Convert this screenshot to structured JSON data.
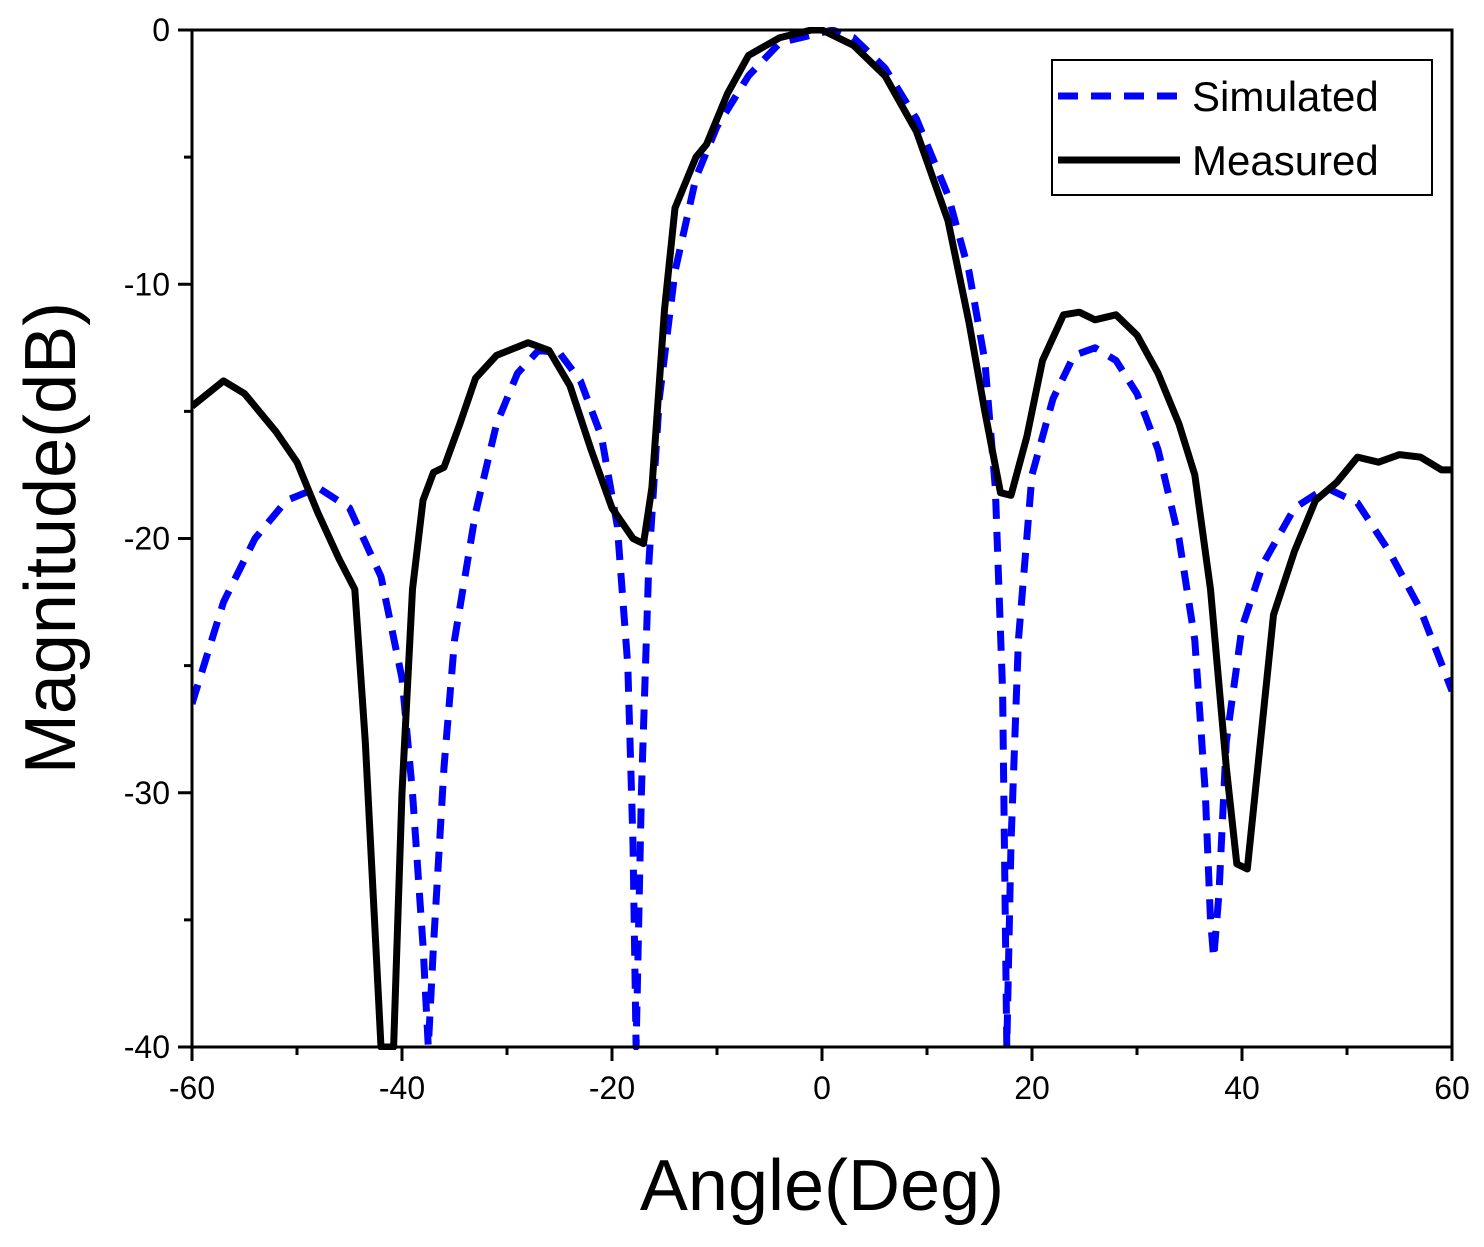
{
  "chart_data": {
    "type": "line",
    "xlabel": "Angle(Deg)",
    "ylabel": "Magnitude(dB)",
    "xlim": [
      -60,
      60
    ],
    "xticks": [
      -60,
      -40,
      -20,
      0,
      20,
      40,
      60
    ],
    "xminorticks": [
      -50,
      -30,
      -10,
      10,
      30,
      50
    ],
    "ylim": [
      -40,
      0
    ],
    "yticks": [
      0,
      -10,
      -20,
      -30,
      -40
    ],
    "yminorticks": [
      -5,
      -15,
      -25,
      -35
    ],
    "grid": false,
    "legend": "upper right",
    "series": [
      {
        "name": "Simulated",
        "color": "#0000ff",
        "linestyle": "dashed",
        "x": [
          -60,
          -57,
          -54,
          -51,
          -48,
          -45,
          -42,
          -40,
          -39,
          -38,
          -37.5,
          -37,
          -36,
          -35,
          -33,
          -31,
          -29,
          -27,
          -25,
          -23,
          -21,
          -19.5,
          -18.5,
          -18,
          -17.7,
          -17.2,
          -16.5,
          -15.5,
          -14,
          -12,
          -10,
          -7,
          -4,
          0,
          1,
          3,
          6,
          9,
          12,
          14,
          15.5,
          16.5,
          17.2,
          17.6,
          18,
          18.7,
          20,
          22,
          24,
          26,
          28,
          30,
          32,
          34,
          35.5,
          36.5,
          37,
          37.3,
          37.8,
          38.5,
          40,
          42,
          45,
          48,
          51,
          54,
          57,
          60
        ],
        "values": [
          -26.5,
          -22.5,
          -20,
          -18.5,
          -18,
          -18.8,
          -21.5,
          -25.5,
          -30,
          -36,
          -40,
          -36,
          -29,
          -24,
          -19,
          -15.5,
          -13.5,
          -12.6,
          -12.7,
          -13.8,
          -16,
          -19.5,
          -25,
          -32,
          -40,
          -30,
          -21,
          -14.5,
          -9.5,
          -5.8,
          -3.8,
          -1.8,
          -0.5,
          -0.1,
          0,
          -0.3,
          -1.5,
          -3.5,
          -6.5,
          -9.5,
          -13,
          -18,
          -26,
          -40,
          -32,
          -24,
          -17.5,
          -14.5,
          -12.8,
          -12.5,
          -13,
          -14.3,
          -16.5,
          -20,
          -24,
          -30,
          -35,
          -36.5,
          -34,
          -28,
          -23.5,
          -21,
          -18.8,
          -18,
          -18.6,
          -20.5,
          -22.8,
          -26
        ]
      },
      {
        "name": "Measured",
        "color": "#000000",
        "linestyle": "solid",
        "x": [
          -60,
          -57,
          -55,
          -52,
          -50,
          -48,
          -46,
          -44.5,
          -43.5,
          -42.5,
          -42,
          -40.8,
          -40,
          -39,
          -38,
          -37,
          -36,
          -34.5,
          -33,
          -31,
          -28,
          -26,
          -24,
          -22,
          -20,
          -18,
          -17,
          -16.2,
          -15,
          -14,
          -12,
          -11,
          -9,
          -7,
          -4,
          -1,
          0,
          3,
          6,
          9,
          12,
          14,
          15.5,
          17,
          18,
          19.5,
          21,
          23,
          24.5,
          26,
          28,
          30,
          32,
          34,
          35.5,
          37,
          38.5,
          39.5,
          40.5,
          41.5,
          43,
          45,
          47,
          49,
          51,
          53,
          55,
          57,
          59,
          60
        ],
        "values": [
          -14.8,
          -13.8,
          -14.3,
          -15.8,
          -17,
          -19,
          -20.8,
          -22,
          -28,
          -36,
          -40,
          -40,
          -30,
          -22,
          -18.5,
          -17.4,
          -17.2,
          -15.5,
          -13.7,
          -12.8,
          -12.3,
          -12.6,
          -14,
          -16.5,
          -18.8,
          -20,
          -20.2,
          -18,
          -11,
          -7,
          -5,
          -4.5,
          -2.5,
          -1,
          -0.3,
          0,
          0,
          -0.6,
          -1.8,
          -4,
          -7.5,
          -11.5,
          -15,
          -18.2,
          -18.3,
          -16,
          -13,
          -11.2,
          -11.1,
          -11.4,
          -11.2,
          -12,
          -13.5,
          -15.5,
          -17.5,
          -22,
          -29,
          -32.8,
          -33,
          -29,
          -23,
          -20.5,
          -18.5,
          -17.8,
          -16.8,
          -17,
          -16.7,
          -16.8,
          -17.3,
          -17.3
        ]
      }
    ]
  }
}
